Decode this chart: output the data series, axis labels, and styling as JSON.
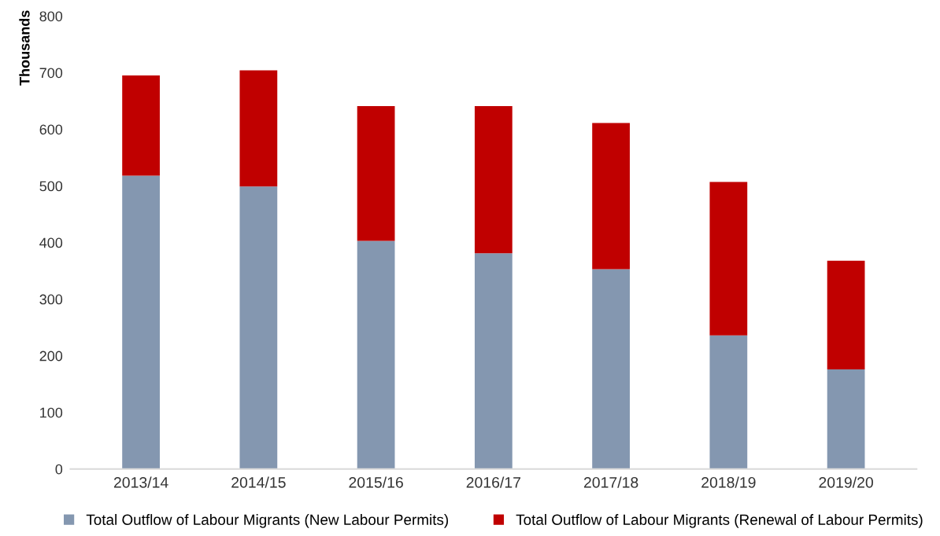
{
  "chart_data": {
    "type": "bar",
    "stacked": true,
    "ylabel": "Thousands",
    "categories": [
      "2013/14",
      "2014/15",
      "2015/16",
      "2016/17",
      "2017/18",
      "2018/19",
      "2019/20"
    ],
    "series": [
      {
        "name": "Total Outflow of Labour Migrants (New Labour Permits)",
        "color": "#8497b0",
        "values": [
          518,
          499,
          403,
          381,
          353,
          236,
          176
        ]
      },
      {
        "name": "Total Outflow of Labour Migrants (Renewal of Labour Permits)",
        "color": "#c00000",
        "values": [
          177,
          205,
          238,
          260,
          258,
          271,
          192
        ]
      }
    ],
    "ylim": [
      0,
      800
    ],
    "yticks": [
      0,
      100,
      200,
      300,
      400,
      500,
      600,
      700,
      800
    ],
    "grid": false,
    "legend": "bottom"
  }
}
